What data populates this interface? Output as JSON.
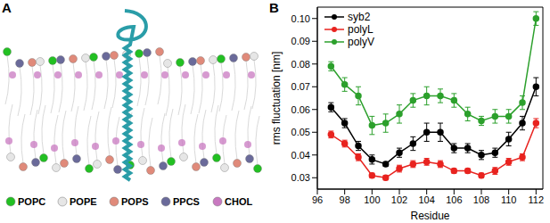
{
  "panel_A": {
    "label": "A",
    "legend": [
      {
        "name": "POPC",
        "color": "#22c022"
      },
      {
        "name": "POPE",
        "color": "#e6e6e6"
      },
      {
        "name": "POPS",
        "color": "#e08a7a"
      },
      {
        "name": "PPCS",
        "color": "#6a6a9a"
      },
      {
        "name": "CHOL",
        "color": "#c878c0"
      }
    ]
  },
  "chart_data": {
    "type": "line",
    "title": "B",
    "x_label": "Residue",
    "y_label": "rms fluctuation [nm]",
    "x": [
      97,
      98,
      99,
      100,
      101,
      102,
      103,
      104,
      105,
      106,
      107,
      108,
      109,
      110,
      111,
      112
    ],
    "series": [
      {
        "name": "syb2",
        "color": "#000000",
        "marker": "circle",
        "line_style": "solid",
        "values": [
          0.061,
          0.054,
          0.044,
          0.038,
          0.036,
          0.041,
          0.045,
          0.05,
          0.05,
          0.043,
          0.043,
          0.04,
          0.041,
          0.047,
          0.054,
          0.07
        ],
        "errors": [
          0.002,
          0.002,
          0.002,
          0.002,
          0.001,
          0.002,
          0.003,
          0.004,
          0.004,
          0.002,
          0.002,
          0.002,
          0.002,
          0.003,
          0.003,
          0.004
        ]
      },
      {
        "name": "polyL",
        "color": "#e8231f",
        "marker": "circle",
        "line_style": "solid",
        "values": [
          0.049,
          0.045,
          0.039,
          0.031,
          0.03,
          0.034,
          0.036,
          0.037,
          0.036,
          0.033,
          0.033,
          0.031,
          0.033,
          0.037,
          0.039,
          0.054
        ],
        "errors": [
          0.0015,
          0.0015,
          0.0015,
          0.001,
          0.001,
          0.0015,
          0.0015,
          0.0015,
          0.0015,
          0.001,
          0.001,
          0.001,
          0.0015,
          0.0015,
          0.0015,
          0.002
        ]
      },
      {
        "name": "polyV",
        "color": "#2ca02c",
        "marker": "circle",
        "line_style": "solid",
        "values": [
          0.079,
          0.071,
          0.066,
          0.053,
          0.054,
          0.058,
          0.064,
          0.066,
          0.066,
          0.064,
          0.058,
          0.055,
          0.057,
          0.057,
          0.063,
          0.1
        ],
        "errors": [
          0.002,
          0.003,
          0.004,
          0.004,
          0.004,
          0.004,
          0.003,
          0.004,
          0.003,
          0.003,
          0.003,
          0.002,
          0.003,
          0.003,
          0.003,
          0.003
        ]
      }
    ],
    "xlim": [
      96,
      112.5
    ],
    "xticks": [
      96,
      98,
      100,
      102,
      104,
      106,
      108,
      110,
      112
    ],
    "ylim": [
      0.025,
      0.105
    ],
    "yticks": [
      0.03,
      0.04,
      0.05,
      0.06,
      0.07,
      0.08,
      0.09,
      {
        "value": 0.1,
        "label": "0.10"
      }
    ],
    "legend": "upper left"
  }
}
